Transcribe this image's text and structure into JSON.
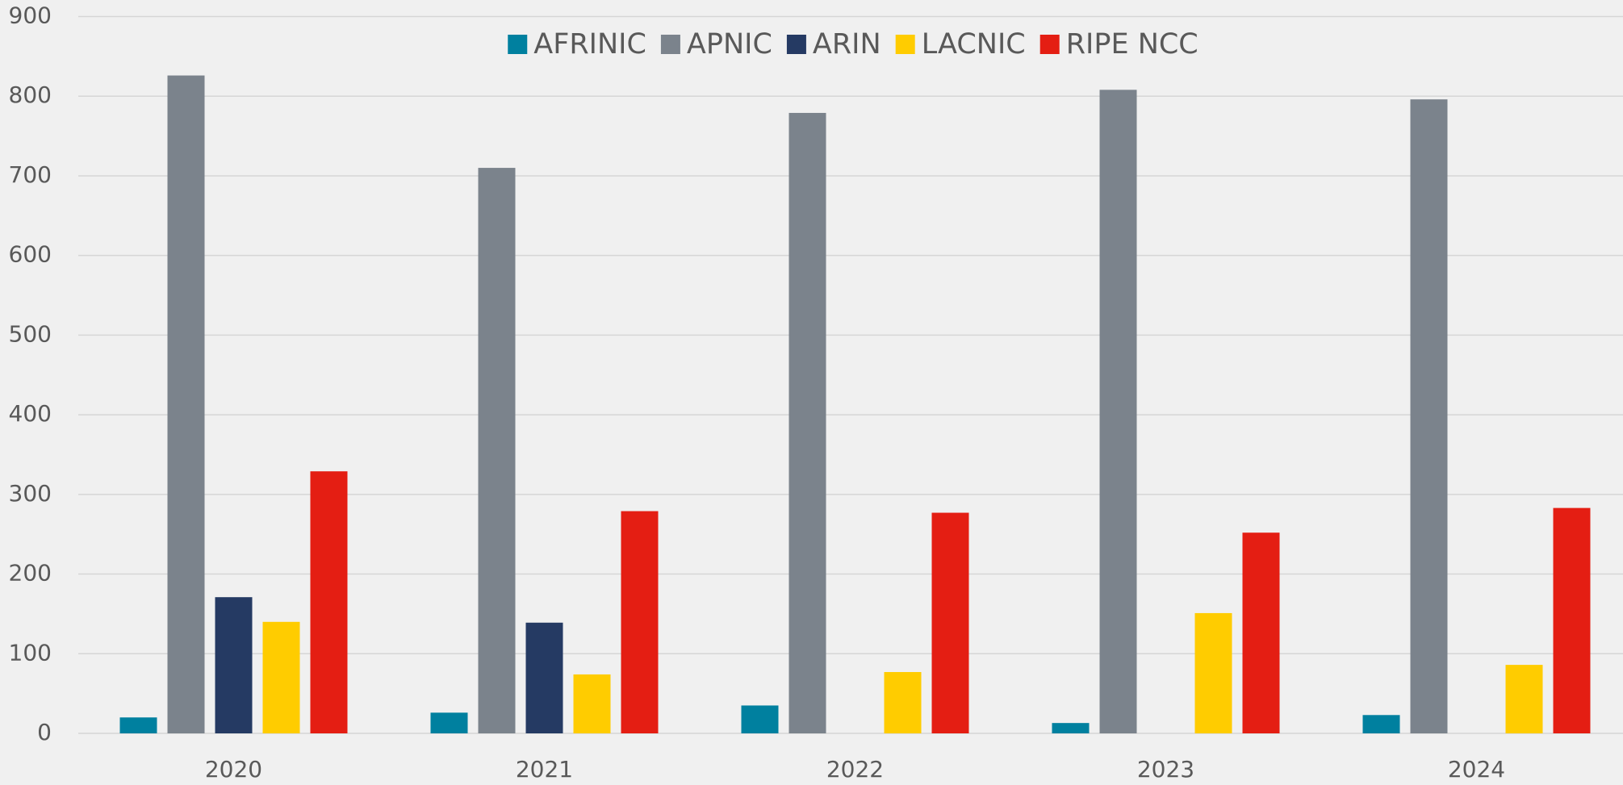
{
  "chart_data": {
    "type": "bar",
    "categories": [
      "2020",
      "2021",
      "2022",
      "2023",
      "2024"
    ],
    "series": [
      {
        "name": "AFRINIC",
        "color": "#00809f",
        "values": [
          20,
          26,
          35,
          13,
          23
        ]
      },
      {
        "name": "APNIC",
        "color": "#7b838c",
        "values": [
          826,
          710,
          779,
          808,
          796
        ]
      },
      {
        "name": "ARIN",
        "color": "#253a63",
        "values": [
          171,
          139,
          null,
          null,
          null
        ]
      },
      {
        "name": "LACNIC",
        "color": "#ffcc00",
        "values": [
          140,
          74,
          77,
          151,
          86
        ]
      },
      {
        "name": "RIPE NCC",
        "color": "#e41e13",
        "values": [
          329,
          279,
          277,
          252,
          283
        ]
      }
    ],
    "ylim": [
      0,
      900
    ],
    "yticks": [
      0,
      100,
      200,
      300,
      400,
      500,
      600,
      700,
      800,
      900
    ],
    "grid": true,
    "legend": "top"
  }
}
